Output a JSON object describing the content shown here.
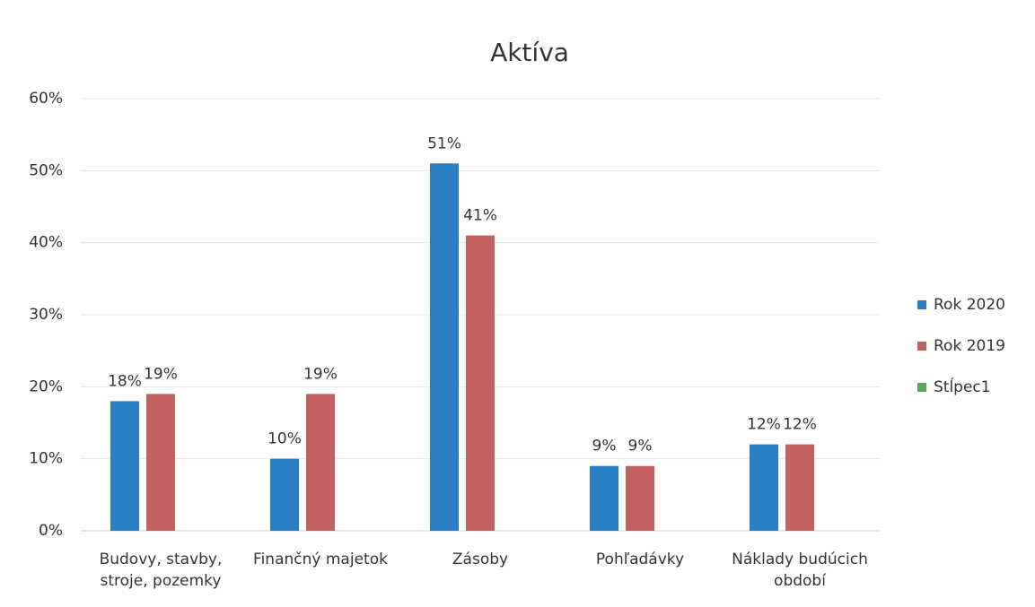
{
  "chart_data": {
    "type": "bar",
    "title": "Aktíva",
    "categories": [
      "Budovy, stavby, stroje, pozemky",
      "Finančný majetok",
      "Zásoby",
      "Pohľadávky",
      "Náklady budúcich období"
    ],
    "series": [
      {
        "name": "Rok 2020",
        "color": "#2a7fc4",
        "values": [
          18,
          10,
          51,
          9,
          12
        ],
        "value_labels": [
          "18%",
          "10%",
          "51%",
          "9%",
          "12%"
        ]
      },
      {
        "name": "Rok 2019",
        "color": "#c2625f",
        "values": [
          19,
          19,
          41,
          9,
          12
        ],
        "value_labels": [
          "19%",
          "19%",
          "41%",
          "9%",
          "12%"
        ]
      },
      {
        "name": "Stĺpec1",
        "color": "#5aa65a",
        "values": [
          null,
          null,
          null,
          null,
          null
        ]
      }
    ],
    "ylim": [
      0,
      60
    ],
    "yticks": [
      {
        "value": 0,
        "label": "0%"
      },
      {
        "value": 10,
        "label": "10%"
      },
      {
        "value": 20,
        "label": "20%"
      },
      {
        "value": 30,
        "label": "30%"
      },
      {
        "value": 40,
        "label": "40%"
      },
      {
        "value": 50,
        "label": "50%"
      },
      {
        "value": 60,
        "label": "60%"
      }
    ],
    "grid": true,
    "legend": "right"
  }
}
